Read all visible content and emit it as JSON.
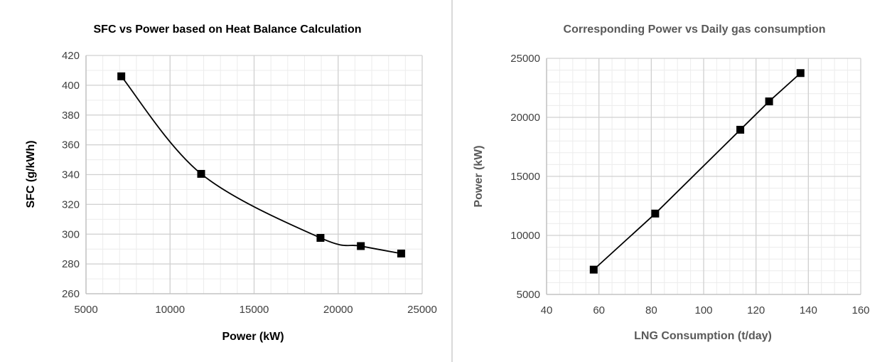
{
  "chart_data": [
    {
      "type": "scatter",
      "title": "SFC vs Power based on Heat Balance Calculation",
      "xlabel": "Power (kW)",
      "ylabel": "SFC (g/kWh)",
      "xlim": [
        5000,
        25000
      ],
      "ylim": [
        260,
        420
      ],
      "xticks": [
        5000,
        10000,
        15000,
        20000,
        25000
      ],
      "yticks": [
        260,
        280,
        300,
        320,
        340,
        360,
        380,
        400,
        420
      ],
      "x_minor_step": 1000,
      "y_minor_step": 10,
      "grid": true,
      "trendline": "smooth curve",
      "series": [
        {
          "marker": "square",
          "color": "#000000",
          "x": [
            7100,
            11850,
            18950,
            21350,
            23750
          ],
          "y": [
            406,
            340.5,
            297.5,
            292,
            287
          ]
        }
      ]
    },
    {
      "type": "line",
      "title": "Corresponding Power vs Daily gas consumption",
      "xlabel": "LNG Consumption (t/day)",
      "ylabel": "Power (kW)",
      "xlim": [
        40,
        160
      ],
      "ylim": [
        5000,
        25000
      ],
      "xticks": [
        40,
        60,
        80,
        100,
        120,
        140,
        160
      ],
      "yticks": [
        5000,
        10000,
        15000,
        20000,
        25000
      ],
      "x_minor_step": 5,
      "y_minor_step": 1000,
      "grid": true,
      "series": [
        {
          "marker": "square",
          "color": "#000000",
          "x": [
            58,
            81.5,
            114,
            125,
            137
          ],
          "y": [
            7100,
            11850,
            18950,
            21350,
            23750
          ]
        }
      ]
    }
  ],
  "colors": {
    "major_grid": "#d0d0d0",
    "minor_grid": "#ececec",
    "axis": "#bfbfbf",
    "text": "#404040",
    "title_left": "#000000",
    "title_right": "#595959",
    "marker": "#000000"
  }
}
